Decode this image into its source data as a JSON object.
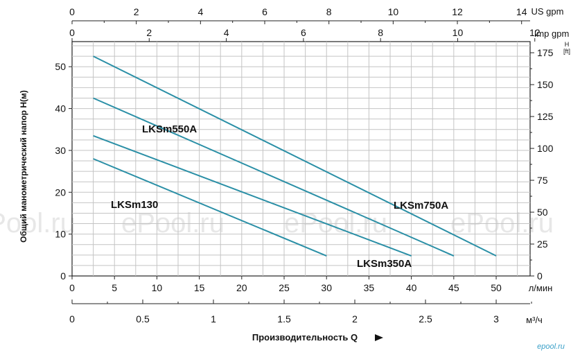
{
  "chart_data": {
    "type": "line",
    "title": "",
    "x_axis": {
      "unit": "л/мин",
      "range": [
        0,
        54
      ],
      "ticks": [
        "0",
        "5",
        "10",
        "15",
        "20",
        "25",
        "30",
        "35",
        "40",
        "45",
        "50"
      ]
    },
    "x_axis_m3h": {
      "unit": "м³/ч",
      "ticks": [
        "0",
        "0.5",
        "1",
        "1.5",
        "2",
        "2.5",
        "3"
      ]
    },
    "x_axis_us_gpm": {
      "unit": "US gpm",
      "ticks": [
        "0",
        "2",
        "4",
        "6",
        "8",
        "10",
        "12",
        "14"
      ]
    },
    "x_axis_imp_gpm": {
      "unit": "Imp gpm",
      "ticks": [
        "0",
        "2",
        "4",
        "6",
        "8",
        "10",
        "12"
      ]
    },
    "y_axis": {
      "label": "Общий манометрический напор H(м)",
      "range": [
        0,
        56
      ],
      "ticks": [
        "0",
        "10",
        "20",
        "30",
        "40",
        "50"
      ]
    },
    "y_axis_right": {
      "unit": "H [ft]",
      "unit_main": "H",
      "unit_sub": "[ft]",
      "ticks": [
        "0",
        "25",
        "50",
        "75",
        "100",
        "125",
        "150",
        "175"
      ]
    },
    "x_title": "Производительность Q",
    "series": [
      {
        "name": "LKSm130",
        "x": [
          2.5,
          30
        ],
        "y": [
          28,
          4.8
        ]
      },
      {
        "name": "LKSm350A",
        "x": [
          2.5,
          40
        ],
        "y": [
          33.5,
          4.8
        ]
      },
      {
        "name": "LKSm550A",
        "x": [
          2.5,
          45
        ],
        "y": [
          42.5,
          4.8
        ]
      },
      {
        "name": "LKSm750A",
        "x": [
          2.5,
          50
        ],
        "y": [
          52.5,
          4.8
        ]
      }
    ],
    "grid": true,
    "line_color": "#2a8fa6"
  },
  "watermark": "ePool.ru",
  "logo": "epool.ru"
}
